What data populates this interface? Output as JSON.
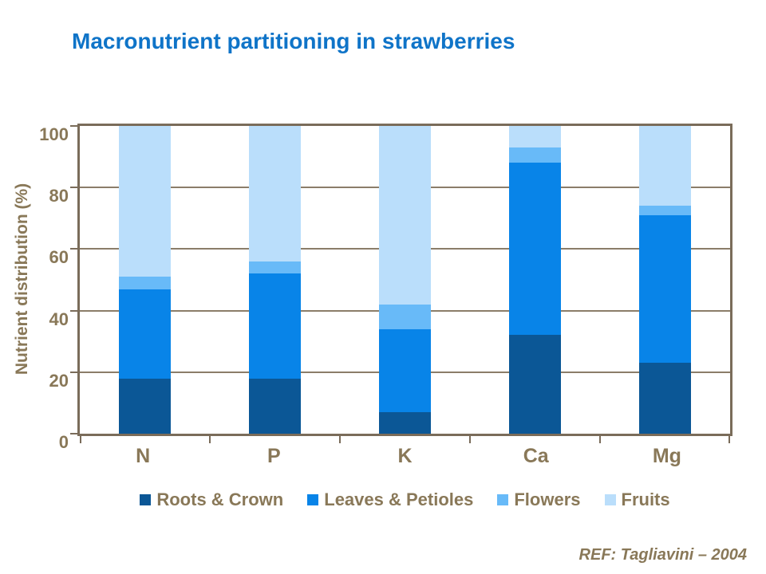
{
  "title": "Macronutrient partitioning in strawberries",
  "reference": "REF: Tagliavini – 2004",
  "colors": {
    "title": "#0F74C8",
    "axis_text": "#897858",
    "frame": "#7A6C5A",
    "gridline": "#8B7D69"
  },
  "chart_data": {
    "type": "bar",
    "stacked": true,
    "title": "Macronutrient partitioning in strawberries",
    "ylabel": "Nutrient distribution (%)",
    "xlabel": "",
    "ylim": [
      0,
      100
    ],
    "yticks": [
      0,
      20,
      40,
      60,
      80,
      100
    ],
    "grid": true,
    "legend_position": "bottom",
    "categories": [
      "N",
      "P",
      "K",
      "Ca",
      "Mg"
    ],
    "series": [
      {
        "name": "Roots & Crown",
        "color": "#0B5796",
        "values": [
          18,
          18,
          7,
          32,
          23
        ]
      },
      {
        "name": "Leaves & Petioles",
        "color": "#0884E8",
        "values": [
          29,
          34,
          27,
          56,
          48
        ]
      },
      {
        "name": "Flowers",
        "color": "#68BAF8",
        "values": [
          4,
          4,
          8,
          5,
          3
        ]
      },
      {
        "name": "Fruits",
        "color": "#BADEFB",
        "values": [
          49,
          44,
          58,
          7,
          26
        ]
      }
    ]
  }
}
